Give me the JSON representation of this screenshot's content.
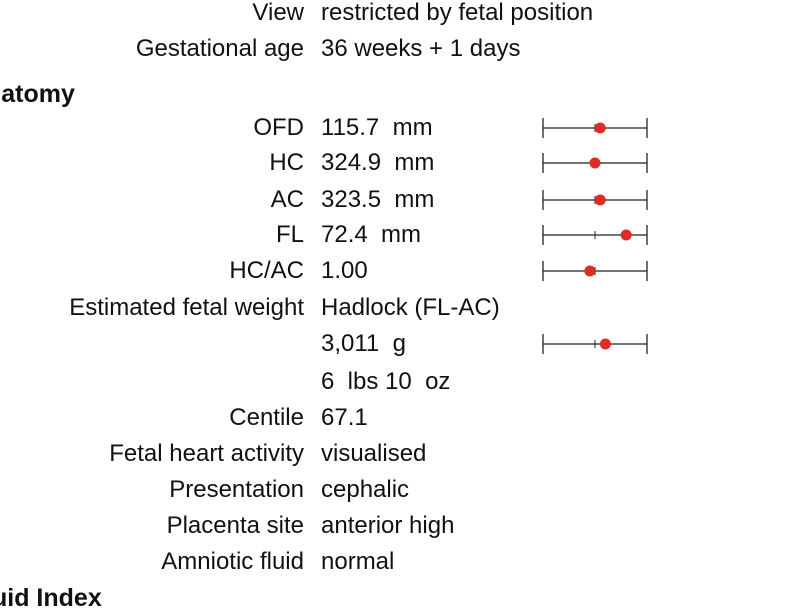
{
  "sections": {
    "anatomy_heading": "natomy",
    "fluid_heading": "uid Index"
  },
  "rows": [
    {
      "label": "View",
      "value": "restricted by fetal position"
    },
    {
      "label": "Gestational age",
      "value": "36 weeks + 1 days"
    },
    {
      "label": "OFD",
      "value": "115.7  mm",
      "gauge": 0.55
    },
    {
      "label": "HC",
      "value": "324.9  mm",
      "gauge": 0.5
    },
    {
      "label": "AC",
      "value": "323.5  mm",
      "gauge": 0.55
    },
    {
      "label": "FL",
      "value": "72.4  mm",
      "gauge": 0.8
    },
    {
      "label": "HC/AC",
      "value": "1.00",
      "gauge": 0.45
    },
    {
      "label": "Estimated fetal weight",
      "value": "Hadlock (FL-AC)"
    },
    {
      "label": "",
      "value": "3,011  g",
      "gauge": 0.6
    },
    {
      "label": "",
      "value": "6  lbs 10  oz"
    },
    {
      "label": "Centile",
      "value": "67.1"
    },
    {
      "label": "Fetal heart activity",
      "value": "visualised"
    },
    {
      "label": "Presentation",
      "value": "cephalic"
    },
    {
      "label": "Placenta site",
      "value": "anterior high"
    },
    {
      "label": "Amniotic fluid",
      "value": "normal"
    }
  ],
  "colors": {
    "marker": "#dd2c24",
    "line": "#222222"
  }
}
